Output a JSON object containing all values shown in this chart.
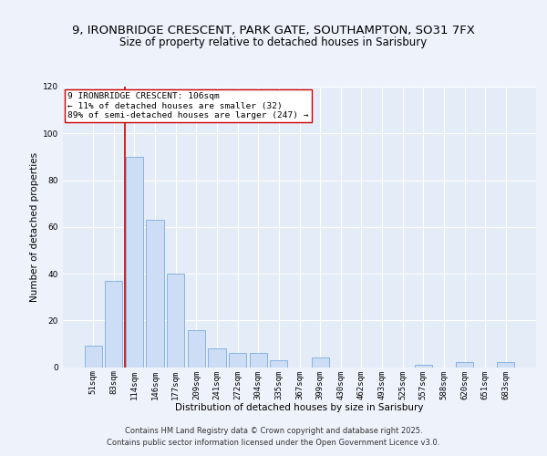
{
  "title1": "9, IRONBRIDGE CRESCENT, PARK GATE, SOUTHAMPTON, SO31 7FX",
  "title2": "Size of property relative to detached houses in Sarisbury",
  "xlabel": "Distribution of detached houses by size in Sarisbury",
  "ylabel": "Number of detached properties",
  "bar_labels": [
    "51sqm",
    "83sqm",
    "114sqm",
    "146sqm",
    "177sqm",
    "209sqm",
    "241sqm",
    "272sqm",
    "304sqm",
    "335sqm",
    "367sqm",
    "399sqm",
    "430sqm",
    "462sqm",
    "493sqm",
    "525sqm",
    "557sqm",
    "588sqm",
    "620sqm",
    "651sqm",
    "683sqm"
  ],
  "bar_values": [
    9,
    37,
    90,
    63,
    40,
    16,
    8,
    6,
    6,
    3,
    0,
    4,
    0,
    0,
    0,
    0,
    1,
    0,
    2,
    0,
    2
  ],
  "bar_color": "#ccddf5",
  "bar_edgecolor": "#7aacdc",
  "bar_linewidth": 0.6,
  "vline_color": "#cc0000",
  "vline_linewidth": 1.2,
  "vline_position": 1.55,
  "annotation_text": "9 IRONBRIDGE CRESCENT: 106sqm\n← 11% of detached houses are smaller (32)\n89% of semi-detached houses are larger (247) →",
  "annotation_box_edgecolor": "#cc0000",
  "annotation_box_facecolor": "white",
  "ylim": [
    0,
    120
  ],
  "yticks": [
    0,
    20,
    40,
    60,
    80,
    100,
    120
  ],
  "background_color": "#eef2fb",
  "plot_bg_color": "#e4ecf7",
  "grid_color": "#ffffff",
  "footer1": "Contains HM Land Registry data © Crown copyright and database right 2025.",
  "footer2": "Contains public sector information licensed under the Open Government Licence v3.0.",
  "title1_fontsize": 9.5,
  "title2_fontsize": 8.5,
  "axis_label_fontsize": 7.5,
  "tick_fontsize": 6.5,
  "annotation_fontsize": 6.8,
  "footer_fontsize": 6.0
}
